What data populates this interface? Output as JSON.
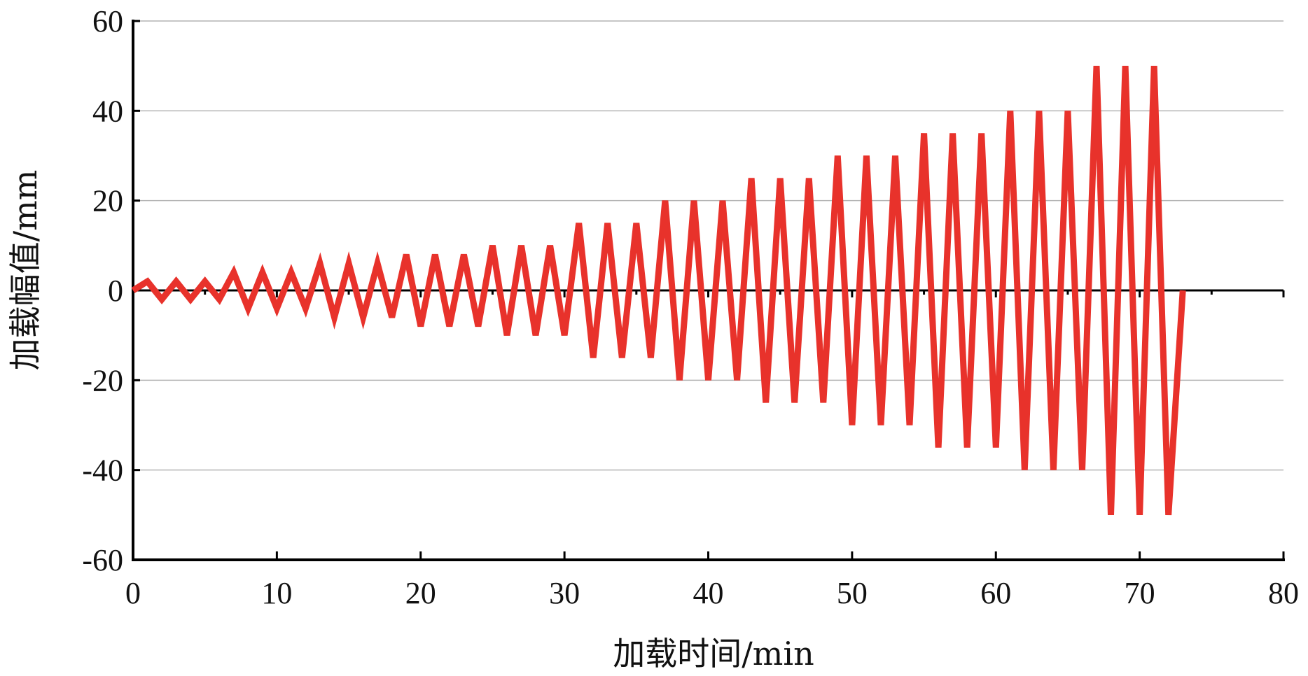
{
  "chart_data": {
    "type": "line",
    "xlabel": "加载时间/min",
    "ylabel": "加载幅值/mm",
    "xlim": [
      0,
      80
    ],
    "ylim": [
      -60,
      60
    ],
    "x_ticks": [
      "0",
      "10",
      "20",
      "30",
      "40",
      "50",
      "60",
      "70",
      "80"
    ],
    "y_ticks": [
      "60",
      "40",
      "20",
      "0",
      "-20",
      "-40",
      "-60"
    ],
    "grid": "horizontal",
    "legend": "none",
    "line_color": "#e8322b",
    "series": [
      {
        "x": [
          0,
          1,
          2,
          3,
          4,
          5,
          6,
          7,
          8,
          9,
          10,
          11,
          12,
          13,
          14,
          15,
          16,
          17,
          18,
          19,
          20,
          21,
          22,
          23,
          24,
          25,
          26,
          27,
          28,
          29,
          30,
          31,
          32,
          33,
          34,
          35,
          36,
          37,
          38,
          39,
          40,
          41,
          42,
          43,
          44,
          45,
          46,
          47,
          48,
          49,
          50,
          51,
          52,
          53,
          54,
          55,
          56,
          57,
          58,
          59,
          60,
          61,
          62,
          63,
          64,
          65,
          66,
          67,
          68,
          69,
          70,
          71,
          72,
          73
        ],
        "y": [
          0,
          2,
          -2,
          2,
          -2,
          2,
          -2,
          4,
          -4,
          4,
          -4,
          4,
          -4,
          6,
          -6,
          6,
          -6,
          6,
          -6,
          8,
          -8,
          8,
          -8,
          8,
          -8,
          10,
          -10,
          10,
          -10,
          10,
          -10,
          15,
          -15,
          15,
          -15,
          15,
          -15,
          20,
          -20,
          20,
          -20,
          20,
          -20,
          25,
          -25,
          25,
          -25,
          25,
          -25,
          30,
          -30,
          30,
          -30,
          30,
          -30,
          35,
          -35,
          35,
          -35,
          35,
          -35,
          40,
          -40,
          40,
          -40,
          40,
          -40,
          50,
          -50,
          50,
          -50,
          50,
          -50,
          0
        ]
      }
    ]
  }
}
